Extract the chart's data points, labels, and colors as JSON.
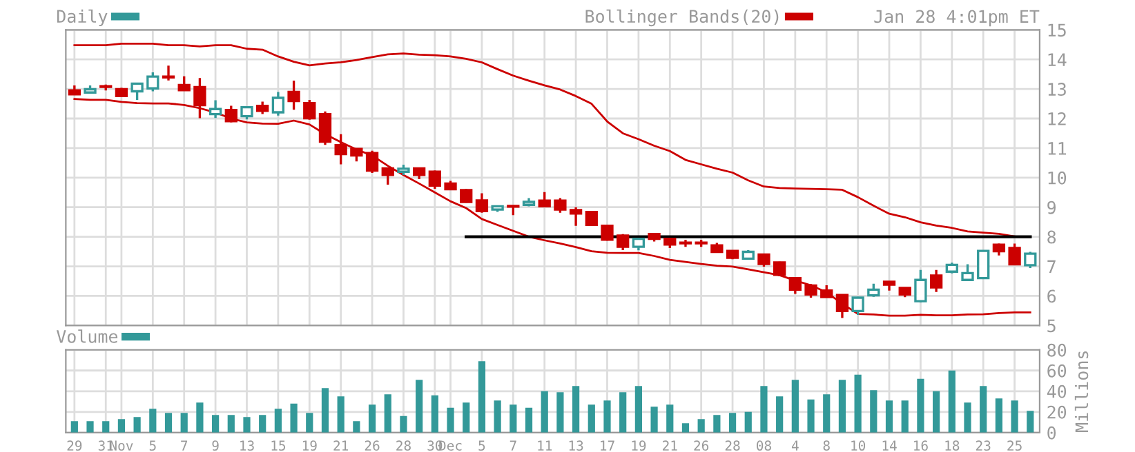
{
  "chart_data": [
    {
      "type": "candlestick",
      "categories": [
        null,
        null,
        null,
        null,
        null,
        null,
        null,
        null,
        null,
        null,
        null,
        null,
        null,
        null,
        null,
        null,
        null,
        null,
        null,
        null,
        null,
        null,
        null,
        null,
        null,
        null,
        null,
        null,
        null,
        null,
        null,
        null,
        null,
        null,
        null,
        null,
        null,
        null,
        null,
        null,
        null,
        null,
        null,
        null,
        null,
        null,
        null,
        null,
        null,
        null,
        null,
        null,
        null,
        null,
        null,
        null,
        null,
        null,
        null,
        null,
        null,
        null
      ],
      "series": [
        {
          "name": "Daily",
          "type": "candlestick",
          "color": "#339999",
          "ohlc": [
            [
              12.95,
              13.12,
              12.82,
              12.82
            ],
            [
              12.88,
              13.12,
              12.88,
              12.99
            ],
            [
              13.09,
              13.15,
              12.95,
              13.07
            ],
            [
              12.99,
              13.04,
              12.73,
              12.76
            ],
            [
              12.92,
              13.18,
              12.63,
              13.18
            ],
            [
              13.02,
              13.56,
              12.92,
              13.42
            ],
            [
              13.42,
              13.79,
              13.29,
              13.39
            ],
            [
              13.13,
              13.43,
              12.96,
              12.96
            ],
            [
              13.06,
              13.37,
              12.01,
              12.45
            ],
            [
              12.15,
              12.62,
              12.02,
              12.32
            ],
            [
              12.29,
              12.43,
              11.87,
              11.91
            ],
            [
              12.08,
              12.38,
              11.97,
              12.38
            ],
            [
              12.43,
              12.57,
              12.15,
              12.26
            ],
            [
              12.21,
              12.9,
              12.1,
              12.7
            ],
            [
              12.9,
              13.28,
              12.3,
              12.59
            ],
            [
              12.52,
              12.63,
              11.96,
              12.01
            ],
            [
              12.15,
              12.24,
              11.11,
              11.22
            ],
            [
              11.1,
              11.47,
              10.45,
              10.8
            ],
            [
              10.97,
              10.97,
              10.55,
              10.75
            ],
            [
              10.83,
              10.91,
              10.16,
              10.24
            ],
            [
              10.31,
              10.31,
              9.76,
              10.09
            ],
            [
              10.2,
              10.44,
              10.09,
              10.3
            ],
            [
              10.31,
              10.34,
              9.95,
              10.09
            ],
            [
              10.2,
              10.24,
              9.62,
              9.73
            ],
            [
              9.8,
              9.89,
              9.58,
              9.61
            ],
            [
              9.58,
              9.62,
              9.15,
              9.18
            ],
            [
              9.23,
              9.47,
              8.81,
              8.87
            ],
            [
              8.92,
              9.06,
              8.84,
              9.03
            ],
            [
              9.03,
              9.03,
              8.73,
              9.02
            ],
            [
              9.08,
              9.31,
              9.03,
              9.18
            ],
            [
              9.22,
              9.51,
              9.03,
              9.03
            ],
            [
              9.22,
              9.31,
              8.81,
              8.92
            ],
            [
              8.9,
              9.0,
              8.37,
              8.79
            ],
            [
              8.84,
              8.84,
              8.37,
              8.4
            ],
            [
              8.37,
              8.37,
              7.87,
              7.9
            ],
            [
              8.04,
              8.09,
              7.55,
              7.66
            ],
            [
              7.66,
              7.93,
              7.54,
              7.93
            ],
            [
              8.09,
              8.09,
              7.84,
              7.93
            ],
            [
              7.93,
              7.93,
              7.62,
              7.74
            ],
            [
              7.8,
              7.9,
              7.66,
              7.78
            ],
            [
              7.8,
              7.9,
              7.66,
              7.78
            ],
            [
              7.71,
              7.79,
              7.49,
              7.49
            ],
            [
              7.52,
              7.52,
              7.24,
              7.29
            ],
            [
              7.26,
              7.55,
              7.26,
              7.49
            ],
            [
              7.4,
              7.4,
              6.99,
              7.08
            ],
            [
              7.13,
              7.16,
              6.66,
              6.71
            ],
            [
              6.6,
              6.6,
              6.07,
              6.21
            ],
            [
              6.35,
              6.4,
              5.94,
              6.05
            ],
            [
              6.18,
              6.36,
              5.96,
              5.96
            ],
            [
              6.03,
              6.03,
              5.25,
              5.49
            ],
            [
              5.49,
              5.97,
              5.36,
              5.94
            ],
            [
              6.02,
              6.41,
              5.97,
              6.21
            ],
            [
              6.48,
              6.5,
              6.18,
              6.38
            ],
            [
              6.27,
              6.27,
              5.96,
              6.05
            ],
            [
              5.82,
              6.88,
              5.78,
              6.54
            ],
            [
              6.69,
              6.88,
              6.13,
              6.29
            ],
            [
              6.82,
              7.12,
              6.76,
              7.05
            ],
            [
              6.54,
              7.07,
              6.54,
              6.77
            ],
            [
              6.6,
              7.55,
              6.6,
              7.52
            ],
            [
              7.73,
              7.77,
              7.37,
              7.51
            ],
            [
              7.62,
              7.77,
              7.04,
              7.07
            ],
            [
              7.04,
              7.49,
              6.94,
              7.43
            ]
          ],
          "colors": [
            "#cc0000",
            "#339999",
            "#cc0000",
            "#cc0000",
            "#339999",
            "#339999",
            "#cc0000",
            "#cc0000",
            "#cc0000",
            "#339999",
            "#cc0000",
            "#339999",
            "#cc0000",
            "#339999",
            "#cc0000",
            "#cc0000",
            "#cc0000",
            "#cc0000",
            "#cc0000",
            "#cc0000",
            "#cc0000",
            "#339999",
            "#cc0000",
            "#cc0000",
            "#cc0000",
            "#cc0000",
            "#cc0000",
            "#339999",
            "#cc0000",
            "#339999",
            "#cc0000",
            "#cc0000",
            "#cc0000",
            "#cc0000",
            "#cc0000",
            "#cc0000",
            "#339999",
            "#cc0000",
            "#cc0000",
            "#cc0000",
            "#cc0000",
            "#cc0000",
            "#cc0000",
            "#339999",
            "#cc0000",
            "#cc0000",
            "#cc0000",
            "#cc0000",
            "#cc0000",
            "#cc0000",
            "#339999",
            "#339999",
            "#cc0000",
            "#cc0000",
            "#339999",
            "#cc0000",
            "#339999",
            "#339999",
            "#339999",
            "#cc0000",
            "#cc0000",
            "#339999"
          ]
        },
        {
          "name": "Bollinger Bands(20)",
          "type": "line",
          "color": "#cc0000",
          "values": [
            14.48,
            14.48,
            14.48,
            14.53,
            14.53,
            14.53,
            14.48,
            14.48,
            14.44,
            14.48,
            14.48,
            14.36,
            14.33,
            14.1,
            13.92,
            13.8,
            13.86,
            13.9,
            13.98,
            14.08,
            14.17,
            14.2,
            14.16,
            14.14,
            14.1,
            14.02,
            13.9,
            13.67,
            13.45,
            13.28,
            13.12,
            12.98,
            12.76,
            12.5,
            11.9,
            11.5,
            11.3,
            11.08,
            10.9,
            10.6,
            10.45,
            10.3,
            10.17,
            9.91,
            9.7,
            9.65,
            9.63,
            9.62,
            9.61,
            9.59,
            9.34,
            9.05,
            8.78,
            8.66,
            8.49,
            8.38,
            8.3,
            8.18,
            8.14,
            8.1,
            8.01,
            null
          ]
        },
        {
          "type": "line",
          "color": "#cc0000",
          "values": [
            12.66,
            12.63,
            12.63,
            12.56,
            12.52,
            12.51,
            12.51,
            12.46,
            12.35,
            12.2,
            12.0,
            11.87,
            11.83,
            11.82,
            11.93,
            11.8,
            11.47,
            11.2,
            10.95,
            10.75,
            10.4,
            10.09,
            9.8,
            9.5,
            9.2,
            8.97,
            8.6,
            8.4,
            8.2,
            8.0,
            7.88,
            7.77,
            7.65,
            7.51,
            7.46,
            7.45,
            7.45,
            7.35,
            7.22,
            7.15,
            7.08,
            7.02,
            6.99,
            6.9,
            6.8,
            6.7,
            6.52,
            6.36,
            6.12,
            5.74,
            5.39,
            5.37,
            5.33,
            5.33,
            5.36,
            5.34,
            5.34,
            5.37,
            5.38,
            5.42,
            5.44,
            5.44
          ]
        },
        {
          "type": "line",
          "color": "#000000",
          "values": [
            null,
            null,
            null,
            null,
            null,
            null,
            null,
            null,
            null,
            null,
            null,
            null,
            null,
            null,
            null,
            null,
            null,
            null,
            null,
            null,
            null,
            null,
            null,
            null,
            null,
            8,
            8,
            8,
            8,
            8,
            8,
            8,
            8,
            8,
            8,
            8,
            8,
            8,
            8,
            8,
            8,
            8,
            8,
            8,
            8,
            8,
            8,
            8,
            8,
            8,
            8,
            8,
            8,
            8,
            8,
            8,
            8,
            8,
            8,
            8,
            8,
            8
          ]
        }
      ],
      "ylim": [
        5,
        15
      ],
      "yticks": [
        5,
        6,
        7,
        8,
        9,
        10,
        11,
        12,
        13,
        14,
        15
      ],
      "tick_labels": "y",
      "grid": true,
      "legend": "top",
      "annotations": [
        "Jan 28 4:01pm ET"
      ]
    },
    {
      "type": "bar",
      "categories": [
        "29",
        null,
        "31",
        "Nov",
        null,
        "5",
        null,
        "7",
        null,
        "9",
        null,
        "13",
        null,
        "15",
        null,
        "19",
        null,
        "21",
        null,
        "26",
        null,
        "28",
        null,
        "30",
        "Dec",
        null,
        "5",
        null,
        "7",
        null,
        "11",
        null,
        "13",
        null,
        "17",
        null,
        "19",
        null,
        "21",
        null,
        "26",
        null,
        "28",
        null,
        "08",
        null,
        "4",
        null,
        "8",
        null,
        "10",
        null,
        "14",
        null,
        "16",
        null,
        "18",
        null,
        "23",
        null,
        "25",
        null
      ],
      "series": [
        {
          "name": "Volume",
          "color": "#339999",
          "values": [
            11,
            11,
            11,
            13,
            15,
            23,
            19,
            19,
            29,
            17,
            17,
            15,
            17,
            23,
            28,
            19,
            43,
            35,
            11,
            27,
            37,
            16,
            51,
            36,
            24,
            29,
            69,
            31,
            27,
            24,
            40,
            39,
            45,
            27,
            31,
            39,
            45,
            25,
            27,
            9,
            13,
            17,
            19,
            20,
            45,
            35,
            51,
            32,
            37,
            51,
            56,
            41,
            31,
            31,
            52,
            40,
            60,
            29,
            45,
            33,
            31,
            21
          ]
        }
      ],
      "ylim": [
        0,
        80
      ],
      "yticks": [
        0,
        20,
        40,
        60,
        80
      ],
      "ylabel": "Millions",
      "grid": true,
      "legend": "top left"
    }
  ]
}
